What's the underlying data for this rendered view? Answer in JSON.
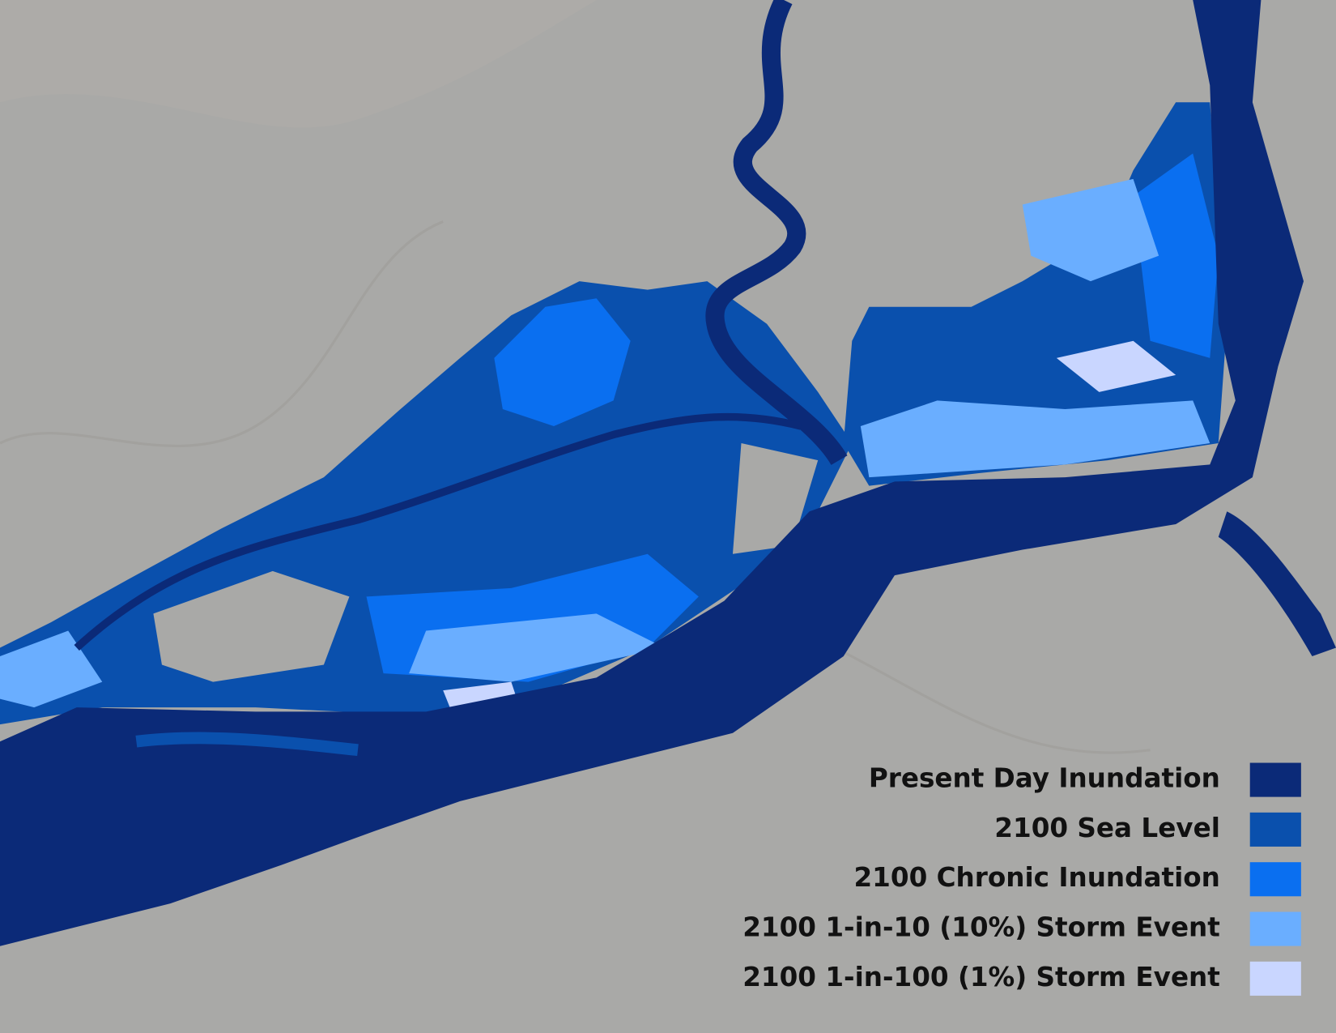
{
  "legend": {
    "items": [
      {
        "label": "Present Day Inundation",
        "color": "#0b2a78"
      },
      {
        "label": "2100 Sea Level",
        "color": "#0a50ad"
      },
      {
        "label": "2100 Chronic Inundation",
        "color": "#0a6ff0"
      },
      {
        "label": "2100 1-in-10 (10%) Storm Event",
        "color": "#6aaeff"
      },
      {
        "label": "2100 1-in-100 (1%) Storm Event",
        "color": "#c9d6ff"
      }
    ]
  }
}
